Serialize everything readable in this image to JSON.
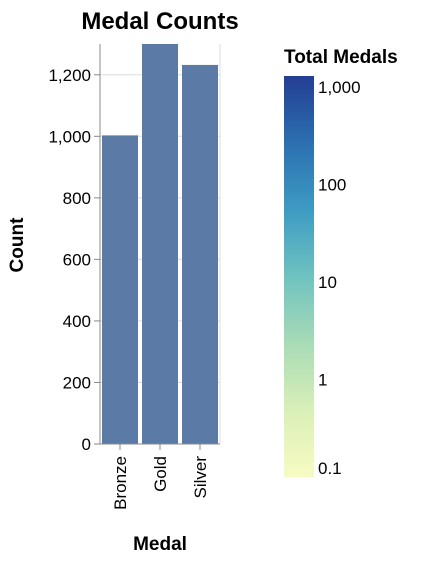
{
  "chart_data": {
    "type": "bar",
    "title": "Medal Counts",
    "xlabel": "Medal",
    "ylabel": "Count",
    "categories": [
      "Bronze",
      "Gold",
      "Silver"
    ],
    "values": [
      1003,
      1300,
      1232
    ],
    "ylim": [
      0,
      1300
    ],
    "yticks": [
      0,
      200,
      400,
      600,
      800,
      1000,
      1200
    ],
    "ytick_labels": [
      "0",
      "200",
      "400",
      "600",
      "800",
      "1,000",
      "1,200"
    ],
    "grid": true,
    "bar_color": "#5b7ba6",
    "legend": {
      "title": "Total Medals",
      "placement": "right",
      "scale": "log",
      "domain": [
        0.1,
        1300
      ],
      "ticks": [
        0.1,
        1,
        10,
        100,
        1000
      ],
      "tick_labels": [
        "0.1",
        "1",
        "10",
        "100",
        "1,000"
      ],
      "colors": [
        "#f7fbc3",
        "#d9efb7",
        "#a8dbb6",
        "#6fc2c0",
        "#3d9bc3",
        "#2c6fb0",
        "#243e93"
      ]
    }
  }
}
